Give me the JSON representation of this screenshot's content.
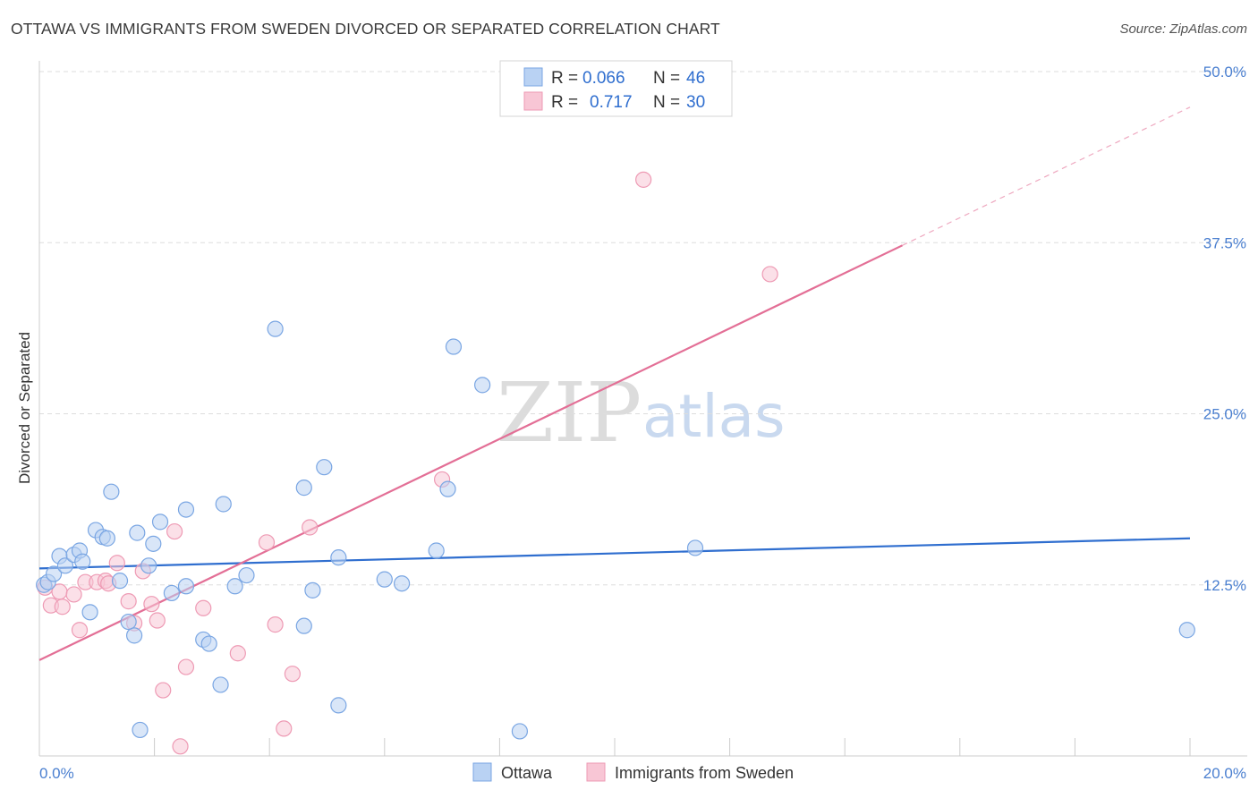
{
  "title": "OTTAWA VS IMMIGRANTS FROM SWEDEN DIVORCED OR SEPARATED CORRELATION CHART",
  "source": "Source: ZipAtlas.com",
  "watermark": {
    "zip": "ZIP",
    "atlas": "atlas"
  },
  "colors": {
    "ottawa_fill": "#b9d2f3",
    "ottawa_stroke": "#7aa6e3",
    "ottawa_line": "#2f6ecf",
    "sweden_fill": "#f8c6d5",
    "sweden_stroke": "#ee9ab4",
    "sweden_line": "#e36f96",
    "grid": "#dddddd",
    "axis_text": "#4a7fd0"
  },
  "chart_data": {
    "type": "scatter",
    "xlabel": "",
    "ylabel": "Divorced or Separated",
    "xlim": [
      0,
      20
    ],
    "ylim": [
      0,
      50
    ],
    "x_ticks": [
      "0.0%",
      "20.0%"
    ],
    "y_ticks": [
      {
        "value": 12.5,
        "label": "12.5%"
      },
      {
        "value": 25.0,
        "label": "25.0%"
      },
      {
        "value": 37.5,
        "label": "37.5%"
      },
      {
        "value": 50.0,
        "label": "50.0%"
      }
    ],
    "legend": [
      {
        "series": "Ottawa",
        "r_label": "R =",
        "r_value": "0.066",
        "n_label": "N =",
        "n_value": "46"
      },
      {
        "series": "Immigrants from Sweden",
        "r_label": "R =",
        "r_value": "0.717",
        "n_label": "N =",
        "n_value": "30"
      }
    ],
    "series": [
      {
        "name": "Ottawa",
        "trend": {
          "x0": 0,
          "y0": 13.7,
          "x1": 20,
          "y1": 15.9
        },
        "points": [
          [
            0.08,
            12.5
          ],
          [
            0.15,
            12.7
          ],
          [
            0.25,
            13.3
          ],
          [
            0.35,
            14.6
          ],
          [
            0.45,
            13.9
          ],
          [
            0.6,
            14.7
          ],
          [
            0.7,
            15.0
          ],
          [
            0.75,
            14.2
          ],
          [
            0.88,
            10.5
          ],
          [
            0.98,
            16.5
          ],
          [
            1.1,
            16.0
          ],
          [
            1.18,
            15.9
          ],
          [
            1.25,
            19.3
          ],
          [
            1.4,
            12.8
          ],
          [
            1.55,
            9.8
          ],
          [
            1.65,
            8.8
          ],
          [
            1.7,
            16.3
          ],
          [
            1.9,
            13.9
          ],
          [
            1.98,
            15.5
          ],
          [
            2.1,
            17.1
          ],
          [
            2.3,
            11.9
          ],
          [
            2.55,
            18.0
          ],
          [
            2.55,
            12.4
          ],
          [
            2.85,
            8.5
          ],
          [
            2.95,
            8.2
          ],
          [
            3.15,
            5.2
          ],
          [
            3.2,
            18.4
          ],
          [
            3.4,
            12.4
          ],
          [
            3.6,
            13.2
          ],
          [
            4.1,
            31.2
          ],
          [
            4.6,
            19.6
          ],
          [
            4.6,
            9.5
          ],
          [
            4.75,
            12.1
          ],
          [
            4.95,
            21.1
          ],
          [
            5.2,
            14.5
          ],
          [
            5.2,
            3.7
          ],
          [
            6.0,
            12.9
          ],
          [
            6.3,
            12.6
          ],
          [
            6.9,
            15.0
          ],
          [
            7.1,
            19.5
          ],
          [
            7.2,
            29.9
          ],
          [
            7.7,
            27.1
          ],
          [
            8.35,
            1.8
          ],
          [
            11.4,
            15.2
          ],
          [
            19.95,
            9.2
          ],
          [
            1.75,
            1.9
          ]
        ]
      },
      {
        "name": "Immigrants from Sweden",
        "trend": {
          "x0": 0,
          "y0": 7.0,
          "x1": 15.0,
          "y1": 37.3
        },
        "trend_ext": {
          "x0": 15.0,
          "y0": 37.3,
          "x1": 20,
          "y1": 47.4
        },
        "points": [
          [
            0.1,
            12.3
          ],
          [
            0.2,
            11.0
          ],
          [
            0.35,
            12.0
          ],
          [
            0.4,
            10.9
          ],
          [
            0.6,
            11.8
          ],
          [
            0.7,
            9.2
          ],
          [
            0.8,
            12.7
          ],
          [
            1.0,
            12.7
          ],
          [
            1.15,
            12.8
          ],
          [
            1.2,
            12.6
          ],
          [
            1.35,
            14.1
          ],
          [
            1.55,
            11.3
          ],
          [
            1.65,
            9.7
          ],
          [
            1.8,
            13.5
          ],
          [
            1.95,
            11.1
          ],
          [
            2.05,
            9.9
          ],
          [
            2.15,
            4.8
          ],
          [
            2.35,
            16.4
          ],
          [
            2.45,
            0.7
          ],
          [
            2.55,
            6.5
          ],
          [
            2.85,
            10.8
          ],
          [
            3.45,
            7.5
          ],
          [
            3.95,
            15.6
          ],
          [
            4.1,
            9.6
          ],
          [
            4.25,
            2.0
          ],
          [
            4.4,
            6.0
          ],
          [
            4.7,
            16.7
          ],
          [
            7.0,
            20.2
          ],
          [
            10.5,
            42.1
          ],
          [
            12.7,
            35.2
          ]
        ]
      }
    ]
  }
}
